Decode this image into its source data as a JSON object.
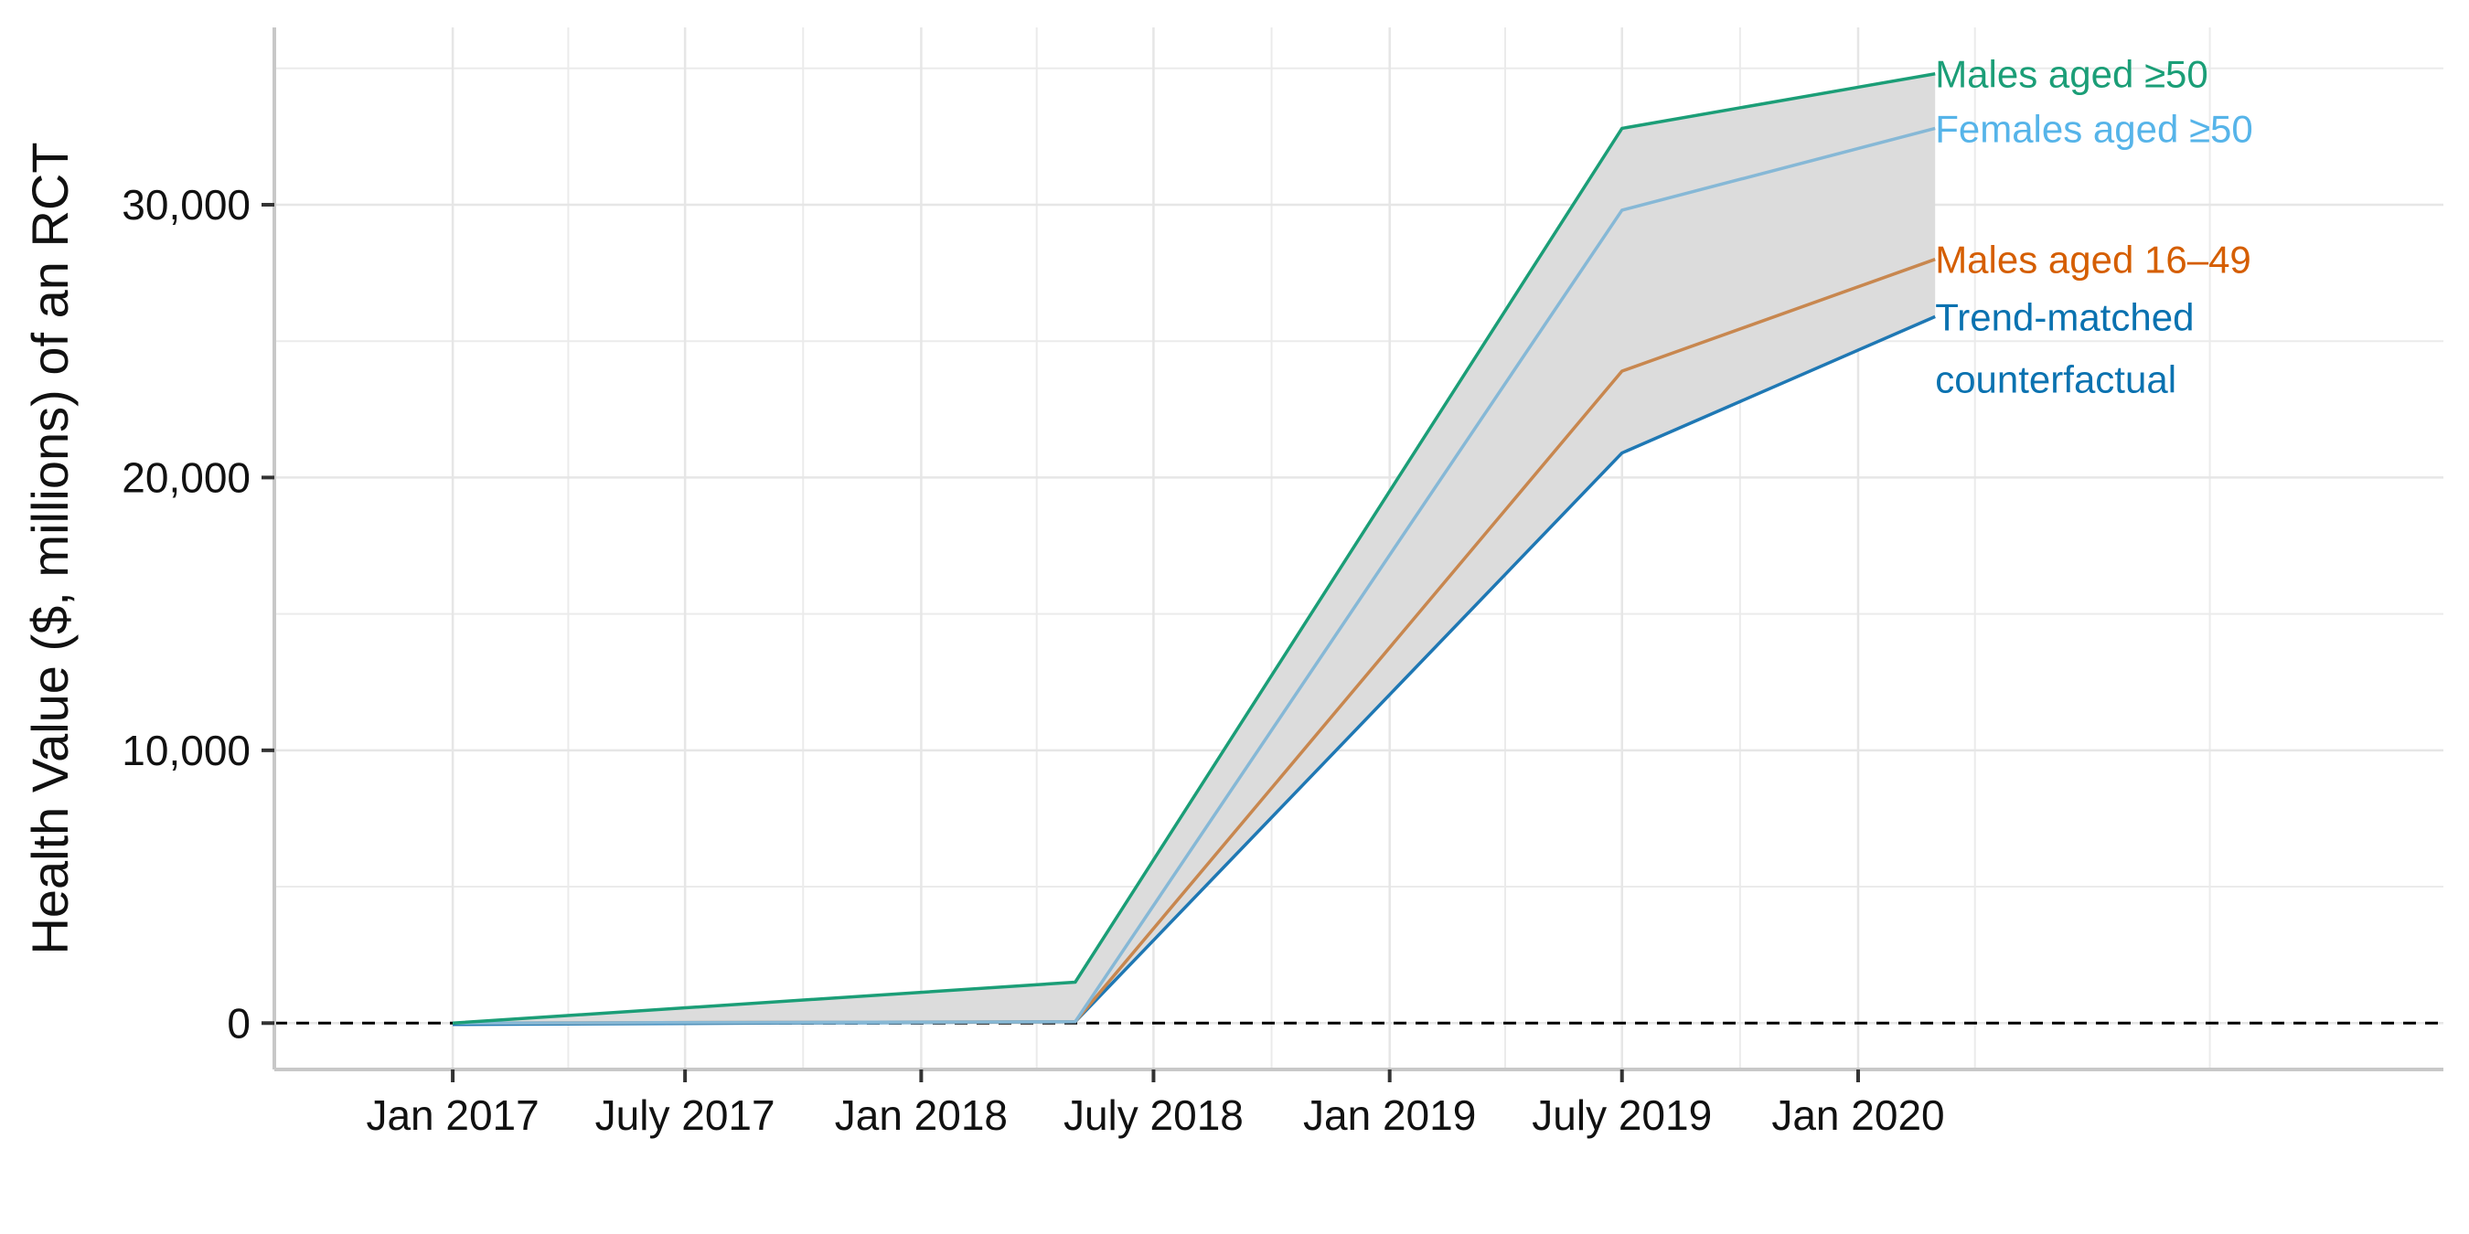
{
  "chart_data": {
    "type": "line",
    "title": "",
    "xlabel": "",
    "ylabel": "Health Value ($, millions) of an RCT",
    "x_tick_labels": [
      "Jan 2017",
      "July 2017",
      "Jan 2018",
      "July 2018",
      "Jan 2019",
      "July 2019",
      "Jan 2020"
    ],
    "x_tick_dates": [
      "2017-01-01",
      "2017-07-01",
      "2018-01-01",
      "2018-07-01",
      "2019-01-01",
      "2019-07-01",
      "2020-01-01"
    ],
    "xlim": [
      "2016-08-15",
      "2021-04-01"
    ],
    "y_ticks": [
      0,
      10000,
      20000,
      30000
    ],
    "y_tick_labels": [
      "0",
      "10,000",
      "20,000",
      "30,000"
    ],
    "ylim": [
      -1700,
      36500
    ],
    "grid": true,
    "reference_line": {
      "y": 0,
      "style": "dashed"
    },
    "band": {
      "between": [
        "Trend-matched counterfactual",
        "Males aged ≥50"
      ],
      "color": "#dcdcdc"
    },
    "x": [
      "2017-01-01",
      "2018-05-01",
      "2019-07-01",
      "2020-03-01"
    ],
    "series": [
      {
        "name": "Males aged ≥50",
        "label_lines": [
          "Males aged ≥50"
        ],
        "color": "#1b9e77",
        "values": [
          0,
          1500,
          32800,
          34800
        ]
      },
      {
        "name": "Females aged ≥50",
        "label_lines": [
          "Females aged ≥50"
        ],
        "color": "#56b4e9",
        "line_color": "#86b8d6",
        "values": [
          0,
          50,
          29800,
          32800
        ]
      },
      {
        "name": "Males aged 16–49",
        "label_lines": [
          "Males aged 16–49"
        ],
        "color": "#d55e00",
        "line_color": "#c8874f",
        "values": [
          0,
          50,
          23900,
          28000
        ]
      },
      {
        "name": "Trend-matched counterfactual",
        "label_lines": [
          "Trend-matched",
          "counterfactual"
        ],
        "color": "#0a72b0",
        "line_color": "#1f78b4",
        "values": [
          -50,
          50,
          20900,
          25900
        ]
      }
    ]
  }
}
